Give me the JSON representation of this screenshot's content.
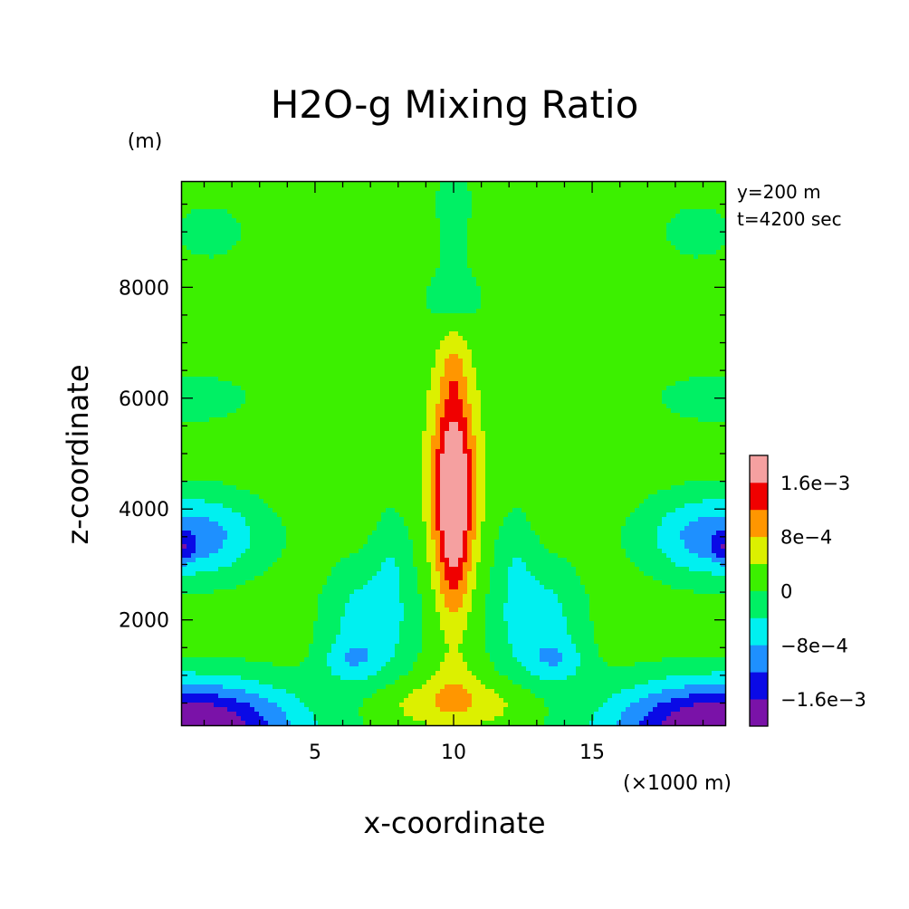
{
  "chart_data": {
    "type": "heatmap",
    "title": "H2O-g Mixing Ratio",
    "xlabel": "x-coordinate",
    "ylabel": "z-coordinate",
    "x_unit_label": "(×1000 m)",
    "y_unit_label": "(m)",
    "info": [
      "y=200 m",
      "t=4200 sec"
    ],
    "xlim": [
      0.2,
      19.8
    ],
    "ylim": [
      100,
      9900
    ],
    "x_ticks": [
      5,
      10,
      15
    ],
    "y_ticks": [
      2000,
      4000,
      6000,
      8000
    ],
    "colorbar": {
      "levels": [
        -0.002,
        -0.0016,
        -0.0012,
        -0.0008,
        -0.0004,
        0,
        0.0004,
        0.0008,
        0.0012,
        0.0016,
        0.002
      ],
      "colors": [
        "#7a12a8",
        "#0a0ae6",
        "#1e90ff",
        "#00f0f0",
        "#00f064",
        "#3cf000",
        "#dcf000",
        "#ff9600",
        "#f00000",
        "#f5a0a0"
      ],
      "tick_labels": [
        {
          "value": -0.0016,
          "label": "−1.6e−3"
        },
        {
          "value": -0.0008,
          "label": "−8e−4"
        },
        {
          "value": 0,
          "label": "0"
        },
        {
          "value": 0.0008,
          "label": "8e−4"
        },
        {
          "value": 0.0016,
          "label": "1.6e−3"
        }
      ]
    },
    "field": {
      "background_level": 0.0002,
      "features": [
        {
          "kind": "hump",
          "x": 10,
          "z": 9500,
          "sx": 0.7,
          "sz": 1500,
          "amp": -0.0004
        },
        {
          "kind": "hump",
          "x": 10,
          "z": 7800,
          "sx": 1.3,
          "sz": 500,
          "amp": -0.00035
        },
        {
          "kind": "hump",
          "x": 1.2,
          "z": 9000,
          "sx": 1.5,
          "sz": 600,
          "amp": -0.00035
        },
        {
          "kind": "hump",
          "x": 18.8,
          "z": 9000,
          "sx": 1.5,
          "sz": 600,
          "amp": -0.00035
        },
        {
          "kind": "hump",
          "x": 0.5,
          "z": 6000,
          "sx": 3.5,
          "sz": 700,
          "amp": -0.00028
        },
        {
          "kind": "hump",
          "x": 19.5,
          "z": 6000,
          "sx": 3.5,
          "sz": 700,
          "amp": -0.00028
        },
        {
          "kind": "hump",
          "x": 0.5,
          "z": 3500,
          "sx": 2.5,
          "sz": 750,
          "amp": -0.0013
        },
        {
          "kind": "hump",
          "x": 19.5,
          "z": 3500,
          "sx": 2.5,
          "sz": 750,
          "amp": -0.0013
        },
        {
          "kind": "hump",
          "x": 0.3,
          "z": 3300,
          "sx": 0.35,
          "sz": 280,
          "amp": -0.0006
        },
        {
          "kind": "hump",
          "x": 19.7,
          "z": 3300,
          "sx": 0.35,
          "sz": 280,
          "amp": -0.0006
        },
        {
          "kind": "hump",
          "x": 7.0,
          "z": 1900,
          "sx": 1.6,
          "sz": 1100,
          "amp": -0.0009
        },
        {
          "kind": "hump",
          "x": 13.0,
          "z": 1900,
          "sx": 1.6,
          "sz": 1100,
          "amp": -0.0009
        },
        {
          "kind": "hump",
          "x": 7.8,
          "z": 3200,
          "sx": 0.7,
          "sz": 900,
          "amp": -0.0004
        },
        {
          "kind": "hump",
          "x": 12.2,
          "z": 3200,
          "sx": 0.7,
          "sz": 900,
          "amp": -0.0004
        },
        {
          "kind": "hump",
          "x": 6.2,
          "z": 1250,
          "sx": 1.0,
          "sz": 350,
          "amp": -0.0005
        },
        {
          "kind": "hump",
          "x": 13.8,
          "z": 1250,
          "sx": 1.0,
          "sz": 350,
          "amp": -0.0005
        },
        {
          "kind": "hump",
          "x": 0.3,
          "z": 100,
          "sx": 4.0,
          "sz": 800,
          "amp": -0.0024
        },
        {
          "kind": "hump",
          "x": 19.7,
          "z": 100,
          "sx": 4.0,
          "sz": 800,
          "amp": -0.0024
        },
        {
          "kind": "hump",
          "x": 10,
          "z": 4500,
          "sx": 0.75,
          "sz": 1700,
          "amp": 0.002
        },
        {
          "kind": "hump",
          "x": 10,
          "z": 3000,
          "sx": 0.55,
          "sz": 1200,
          "amp": 0.0006
        },
        {
          "kind": "hump",
          "x": 10,
          "z": 6500,
          "sx": 0.45,
          "sz": 700,
          "amp": 0.0004
        },
        {
          "kind": "hump",
          "x": 10,
          "z": 500,
          "sx": 2.6,
          "sz": 400,
          "amp": 0.0006
        },
        {
          "kind": "hump",
          "x": 10,
          "z": 900,
          "sx": 0.8,
          "sz": 500,
          "amp": 0.0003
        }
      ]
    }
  }
}
